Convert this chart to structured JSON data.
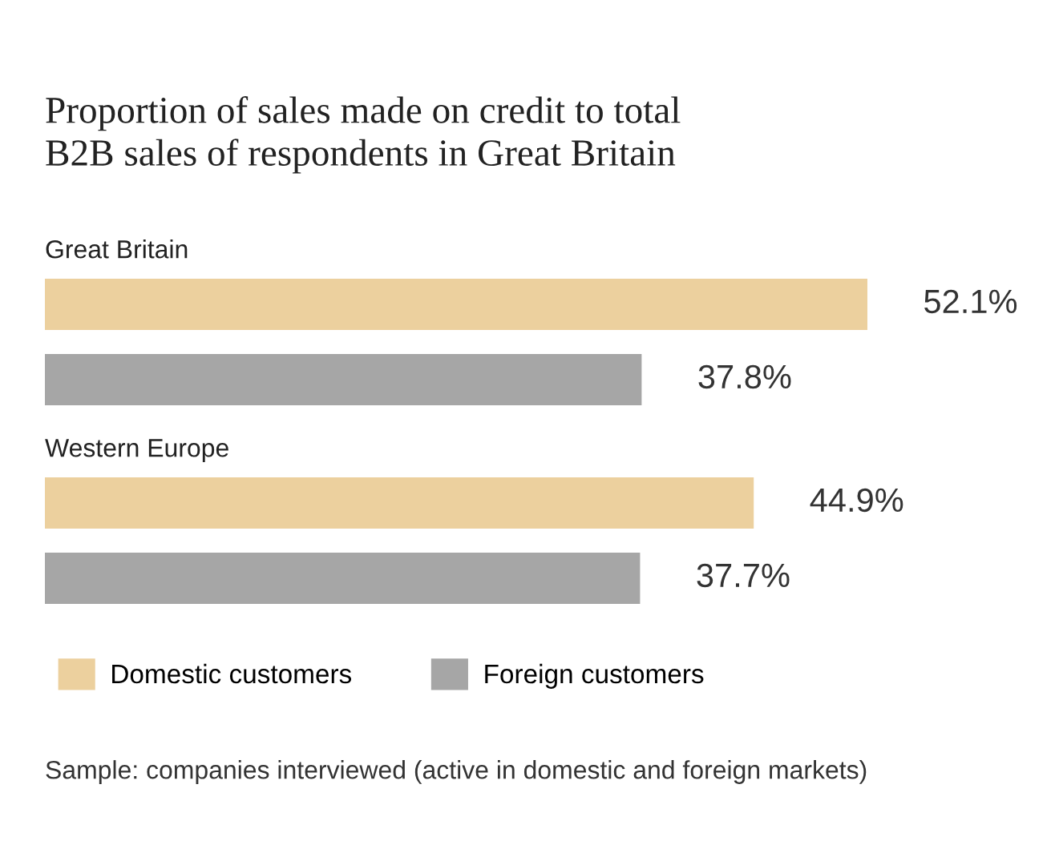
{
  "chart_data": {
    "type": "bar",
    "orientation": "horizontal",
    "title": "Proportion of sales made on credit to total\nB2B sales of respondents in Great Britain",
    "categories": [
      "Great Britain",
      "Western Europe"
    ],
    "series": [
      {
        "name": "Domestic customers",
        "color": "#ecd09e",
        "values": [
          52.1,
          44.9
        ],
        "value_labels": [
          "52.1%",
          "44.9%"
        ]
      },
      {
        "name": "Foreign customers",
        "color": "#a6a6a6",
        "values": [
          37.8,
          37.7
        ],
        "value_labels": [
          "37.8%",
          "37.7%"
        ]
      }
    ],
    "legend": "bottom left",
    "annotations": [
      "Sample: companies interviewed (active in domestic and foreign markets)"
    ]
  }
}
